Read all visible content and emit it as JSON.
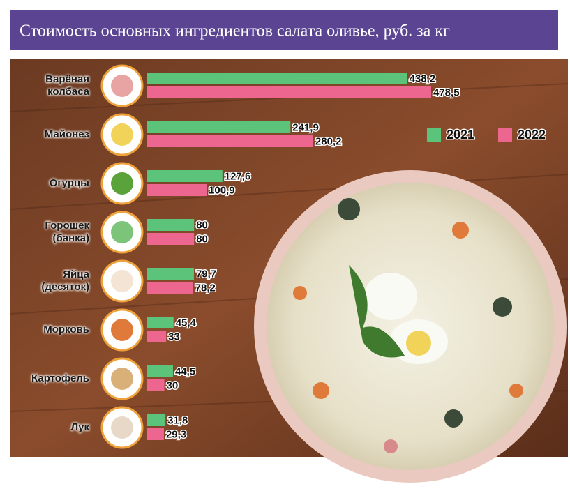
{
  "chart_data": {
    "type": "bar",
    "orientation": "horizontal",
    "title": "Стоимость основных ингредиентов салата оливье, руб. за кг",
    "categories": [
      "Варёная\nколбаса",
      "Майонез",
      "Огурцы",
      "Горошек\n(банка)",
      "Яйца\n(десяток)",
      "Морковь",
      "Картофель",
      "Лук"
    ],
    "series": [
      {
        "name": "2021",
        "color": "#5cc47a",
        "values": [
          438.2,
          241.9,
          127.6,
          80,
          79.7,
          45.4,
          44.5,
          31.8
        ],
        "value_labels": [
          "438,2",
          "241,9",
          "127,6",
          "80",
          "79,7",
          "45,4",
          "44,5",
          "31,8"
        ]
      },
      {
        "name": "2022",
        "color": "#ec6690",
        "values": [
          478.5,
          280.2,
          100.9,
          80,
          78.2,
          33,
          30,
          29.3
        ],
        "value_labels": [
          "478,5",
          "280,2",
          "100,9",
          "80",
          "78,2",
          "33",
          "30",
          "29,3"
        ]
      }
    ]
  }
}
